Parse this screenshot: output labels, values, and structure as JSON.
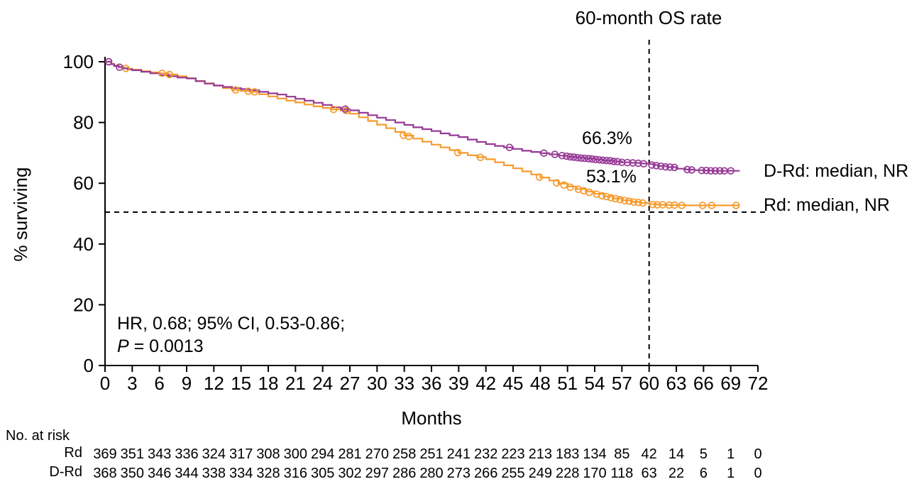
{
  "title": "60-month OS rate",
  "colors": {
    "drd": "#963A96",
    "rd": "#F59B2E",
    "axis": "#000000",
    "reference": "#000000"
  },
  "annotations": {
    "drd_rate": "66.3%",
    "rd_rate": "53.1%",
    "drd_label": "D-Rd: median, NR",
    "rd_label": "Rd: median, NR",
    "hr_line": "HR, 0.68; 95% CI, 0.53-0.86;",
    "p_prefix": "P",
    "p_value": " = 0.0013"
  },
  "chart_data": {
    "type": "line",
    "subtype": "kaplan-meier-step",
    "title": "60-month OS rate",
    "xlabel": "Months",
    "ylabel": "% surviving",
    "xlim": [
      0,
      72
    ],
    "ylim": [
      0,
      100
    ],
    "grid": false,
    "x_ticks": [
      0,
      3,
      6,
      9,
      12,
      15,
      18,
      21,
      24,
      27,
      30,
      33,
      36,
      39,
      42,
      45,
      48,
      51,
      54,
      57,
      60,
      63,
      66,
      69,
      72
    ],
    "y_ticks": [
      0,
      20,
      40,
      60,
      80,
      100
    ],
    "reference_lines": {
      "vertical_x": 60,
      "horizontal_y": 50.5
    },
    "series": [
      {
        "name": "D-Rd",
        "color": "#963A96",
        "median": "NR",
        "rate_60mo": 66.3,
        "points": [
          [
            0,
            100
          ],
          [
            0.7,
            99.2
          ],
          [
            1,
            98.6
          ],
          [
            1.5,
            98.2
          ],
          [
            2,
            97.8
          ],
          [
            2.5,
            97.5
          ],
          [
            3,
            97.2
          ],
          [
            4,
            96.7
          ],
          [
            5,
            96.2
          ],
          [
            6,
            95.6
          ],
          [
            7,
            95.2
          ],
          [
            8,
            94.8
          ],
          [
            9,
            94.5
          ],
          [
            10,
            93.6
          ],
          [
            11,
            92.8
          ],
          [
            12,
            92.2
          ],
          [
            13,
            91.7
          ],
          [
            14,
            91.3
          ],
          [
            15,
            91
          ],
          [
            16,
            90.6
          ],
          [
            17,
            90.1
          ],
          [
            18,
            89.6
          ],
          [
            19,
            89.2
          ],
          [
            20,
            88.5
          ],
          [
            21,
            87.8
          ],
          [
            22,
            87.2
          ],
          [
            23,
            86.5
          ],
          [
            24,
            85.8
          ],
          [
            25,
            85
          ],
          [
            26,
            84.4
          ],
          [
            27,
            84
          ],
          [
            28,
            83.2
          ],
          [
            29,
            82.4
          ],
          [
            30,
            81.6
          ],
          [
            31,
            80.8
          ],
          [
            32,
            80
          ],
          [
            33,
            79.2
          ],
          [
            34,
            78.4
          ],
          [
            35,
            77.8
          ],
          [
            36,
            77.2
          ],
          [
            37,
            76.4
          ],
          [
            38,
            75.8
          ],
          [
            39,
            75.2
          ],
          [
            40,
            74.4
          ],
          [
            41,
            73.6
          ],
          [
            42,
            72.9
          ],
          [
            43,
            72.3
          ],
          [
            44,
            71.8
          ],
          [
            45,
            71.3
          ],
          [
            46,
            70.7
          ],
          [
            47,
            70.3
          ],
          [
            48,
            69.9
          ],
          [
            49,
            69.5
          ],
          [
            50,
            69.1
          ],
          [
            51,
            68.7
          ],
          [
            52,
            68.4
          ],
          [
            53,
            68.1
          ],
          [
            54,
            67.8
          ],
          [
            55,
            67.5
          ],
          [
            56,
            67.2
          ],
          [
            57,
            66.9
          ],
          [
            58,
            66.7
          ],
          [
            59,
            66.5
          ],
          [
            60,
            66.3
          ],
          [
            60.5,
            66
          ],
          [
            61,
            65.7
          ],
          [
            62,
            65.3
          ],
          [
            63,
            64.8
          ],
          [
            64,
            64.5
          ],
          [
            65,
            64.3
          ],
          [
            66,
            64.2
          ],
          [
            67,
            64.1
          ],
          [
            70,
            64.1
          ]
        ],
        "censors": [
          [
            0.4,
            100
          ],
          [
            1.6,
            98.2
          ],
          [
            26.5,
            84.4
          ],
          [
            44.6,
            71.8
          ],
          [
            48.4,
            69.9
          ],
          [
            49.6,
            69.5
          ],
          [
            50.4,
            69.1
          ],
          [
            50.9,
            68.9
          ],
          [
            51.3,
            68.7
          ],
          [
            51.7,
            68.6
          ],
          [
            52.1,
            68.4
          ],
          [
            52.5,
            68.3
          ],
          [
            52.9,
            68.2
          ],
          [
            53.3,
            68.1
          ],
          [
            53.7,
            68
          ],
          [
            54.1,
            67.8
          ],
          [
            54.5,
            67.7
          ],
          [
            54.9,
            67.6
          ],
          [
            55.3,
            67.5
          ],
          [
            55.7,
            67.4
          ],
          [
            56.1,
            67.2
          ],
          [
            56.5,
            67.1
          ],
          [
            57,
            66.9
          ],
          [
            57.6,
            66.8
          ],
          [
            58.2,
            66.7
          ],
          [
            58.8,
            66.6
          ],
          [
            59.4,
            66.4
          ],
          [
            60.3,
            66
          ],
          [
            60.8,
            65.8
          ],
          [
            61.3,
            65.6
          ],
          [
            61.8,
            65.4
          ],
          [
            62.3,
            65.3
          ],
          [
            62.8,
            65.2
          ],
          [
            64.2,
            64.5
          ],
          [
            64.7,
            64.4
          ],
          [
            65.8,
            64.2
          ],
          [
            66.3,
            64.2
          ],
          [
            66.8,
            64.1
          ],
          [
            67.3,
            64.1
          ],
          [
            67.8,
            64.1
          ],
          [
            68.3,
            64.1
          ],
          [
            69,
            64.1
          ]
        ]
      },
      {
        "name": "Rd",
        "color": "#F59B2E",
        "median": "NR",
        "rate_60mo": 53.1,
        "points": [
          [
            0,
            100
          ],
          [
            0.7,
            99.3
          ],
          [
            1,
            98.8
          ],
          [
            1.5,
            98.4
          ],
          [
            2,
            98
          ],
          [
            2.5,
            97.7
          ],
          [
            3,
            97.4
          ],
          [
            4,
            96.9
          ],
          [
            5,
            96.5
          ],
          [
            6,
            96.2
          ],
          [
            7,
            95.8
          ],
          [
            8,
            95.2
          ],
          [
            9,
            94.6
          ],
          [
            10,
            93.7
          ],
          [
            11,
            92.9
          ],
          [
            12,
            92.1
          ],
          [
            13,
            91.3
          ],
          [
            14,
            90.7
          ],
          [
            15,
            90.4
          ],
          [
            16,
            90.1
          ],
          [
            17,
            89.3
          ],
          [
            18,
            88.6
          ],
          [
            19,
            87.9
          ],
          [
            20,
            87.2
          ],
          [
            21,
            86.6
          ],
          [
            22,
            85.9
          ],
          [
            23,
            85.3
          ],
          [
            24,
            84.8
          ],
          [
            25,
            84.3
          ],
          [
            26,
            83.9
          ],
          [
            27,
            82.9
          ],
          [
            28,
            81.7
          ],
          [
            29,
            80.5
          ],
          [
            30,
            79.3
          ],
          [
            31,
            78.1
          ],
          [
            32,
            76.9
          ],
          [
            33,
            75.7
          ],
          [
            34,
            74.7
          ],
          [
            35,
            73.7
          ],
          [
            36,
            72.7
          ],
          [
            37,
            71.8
          ],
          [
            38,
            70.9
          ],
          [
            39,
            70
          ],
          [
            40,
            69.2
          ],
          [
            41,
            68.6
          ],
          [
            42,
            67.9
          ],
          [
            43,
            66.9
          ],
          [
            44,
            65.9
          ],
          [
            45,
            64.9
          ],
          [
            46,
            63.9
          ],
          [
            47,
            62.9
          ],
          [
            48,
            61.9
          ],
          [
            49,
            60.9
          ],
          [
            50,
            59.9
          ],
          [
            51,
            58.9
          ],
          [
            52,
            58.1
          ],
          [
            53,
            57.3
          ],
          [
            54,
            56.5
          ],
          [
            55,
            55.7
          ],
          [
            56,
            55
          ],
          [
            57,
            54.4
          ],
          [
            58,
            53.9
          ],
          [
            59,
            53.5
          ],
          [
            60,
            53.1
          ],
          [
            61,
            52.9
          ],
          [
            62,
            52.8
          ],
          [
            64,
            52.7
          ],
          [
            70,
            52.7
          ]
        ],
        "censors": [
          [
            0.4,
            100
          ],
          [
            2.3,
            97.8
          ],
          [
            6.3,
            96.2
          ],
          [
            7.1,
            95.8
          ],
          [
            14.4,
            90.7
          ],
          [
            15.8,
            90.3
          ],
          [
            16.5,
            90.1
          ],
          [
            25.2,
            84.3
          ],
          [
            26.6,
            83.9
          ],
          [
            32.9,
            75.8
          ],
          [
            33.5,
            75.4
          ],
          [
            38.9,
            70.1
          ],
          [
            41.4,
            68.5
          ],
          [
            47.9,
            62
          ],
          [
            49.8,
            60.1
          ],
          [
            50.6,
            59.4
          ],
          [
            51.3,
            58.7
          ],
          [
            52.2,
            58
          ],
          [
            52.8,
            57.5
          ],
          [
            53.4,
            57
          ],
          [
            54.2,
            56.4
          ],
          [
            54.8,
            55.9
          ],
          [
            55.3,
            55.6
          ],
          [
            55.8,
            55.2
          ],
          [
            56.3,
            54.9
          ],
          [
            56.8,
            54.6
          ],
          [
            57.3,
            54.3
          ],
          [
            57.8,
            54.1
          ],
          [
            58.3,
            53.8
          ],
          [
            58.8,
            53.7
          ],
          [
            59.3,
            53.5
          ],
          [
            60.4,
            53
          ],
          [
            60.9,
            52.9
          ],
          [
            61.5,
            52.9
          ],
          [
            62.2,
            52.8
          ],
          [
            62.8,
            52.8
          ],
          [
            63.6,
            52.7
          ],
          [
            65.9,
            52.7
          ],
          [
            66.9,
            52.7
          ],
          [
            69.6,
            52.7
          ]
        ]
      }
    ],
    "at_risk": {
      "heading": "No. at risk",
      "timepoints": [
        0,
        3,
        6,
        9,
        12,
        15,
        18,
        21,
        24,
        27,
        30,
        33,
        36,
        39,
        42,
        45,
        48,
        51,
        54,
        57,
        60,
        63,
        66,
        69,
        72
      ],
      "rows": [
        {
          "label": "Rd",
          "values": [
            369,
            351,
            343,
            336,
            324,
            317,
            308,
            300,
            294,
            281,
            270,
            258,
            251,
            241,
            232,
            223,
            213,
            183,
            134,
            85,
            42,
            14,
            5,
            1,
            0
          ]
        },
        {
          "label": "D-Rd",
          "values": [
            368,
            350,
            346,
            344,
            338,
            334,
            328,
            316,
            305,
            302,
            297,
            286,
            280,
            273,
            266,
            255,
            249,
            228,
            170,
            118,
            63,
            22,
            6,
            1,
            0
          ]
        }
      ]
    }
  }
}
